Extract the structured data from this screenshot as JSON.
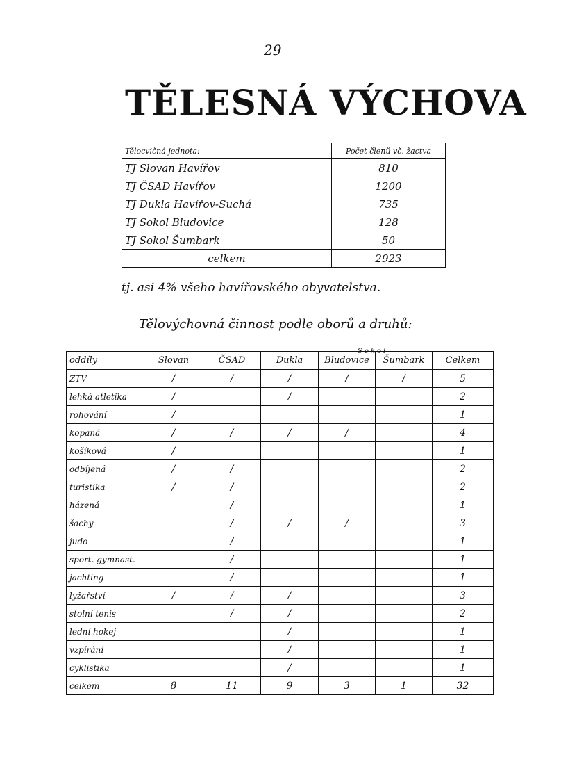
{
  "page_number": "29",
  "title": "TĚLESNÁ VÝCHOVA",
  "members_table": {
    "header": [
      "Tělocvičná jednota:",
      "Počet členů vč. žactva"
    ],
    "rows": [
      [
        "TJ Slovan Havířov",
        810
      ],
      [
        "TJ ČSAD Havířov",
        1200
      ],
      [
        "TJ Dukla Havířov-Suchá",
        735
      ],
      [
        "TJ Sokol Bludovice",
        128
      ],
      [
        "TJ Sokol Šumbark",
        50
      ]
    ],
    "total": [
      "celkem",
      2923
    ]
  },
  "note": "tj. asi 4% všeho havířovského obyvatelstva.",
  "subtitle": "Tělovýchovná činnost podle oborů a druhů:",
  "activity_table": {
    "group_label": "Sokol",
    "header": [
      "oddíly",
      "Slovan",
      "ČSAD",
      "Dukla",
      "Bludovice",
      "Šumbark",
      "Celkem"
    ],
    "rows": [
      [
        "ZTV",
        "/",
        "/",
        "/",
        "/",
        "/",
        5
      ],
      [
        "lehká atletika",
        "/",
        null,
        "/",
        null,
        null,
        2
      ],
      [
        "rohování",
        "/",
        null,
        null,
        null,
        null,
        1
      ],
      [
        "kopaná",
        "/",
        "/",
        "/",
        "/",
        null,
        4
      ],
      [
        "košíková",
        "/",
        null,
        null,
        null,
        null,
        1
      ],
      [
        "odbíjená",
        "/",
        "/",
        null,
        null,
        null,
        2
      ],
      [
        "turistika",
        "/",
        "/",
        null,
        null,
        null,
        2
      ],
      [
        "házená",
        null,
        "/",
        null,
        null,
        null,
        1
      ],
      [
        "šachy",
        null,
        "/",
        "/",
        "/",
        null,
        3
      ],
      [
        "judo",
        null,
        "/",
        null,
        null,
        null,
        1
      ],
      [
        "sport. gymnast.",
        null,
        "/",
        null,
        null,
        null,
        1
      ],
      [
        "jachting",
        null,
        "/",
        null,
        null,
        null,
        1
      ],
      [
        "lyžařství",
        "/",
        "/",
        "/",
        null,
        null,
        3
      ],
      [
        "stolní tenis",
        null,
        "/",
        "/",
        null,
        null,
        2
      ],
      [
        "lední hokej",
        null,
        null,
        "/",
        null,
        null,
        1
      ],
      [
        "vzpírání",
        null,
        null,
        "/",
        null,
        null,
        1
      ],
      [
        "cyklistika",
        null,
        null,
        "/",
        null,
        null,
        1
      ]
    ],
    "total": [
      "celkem",
      8,
      11,
      9,
      3,
      1,
      32
    ]
  }
}
